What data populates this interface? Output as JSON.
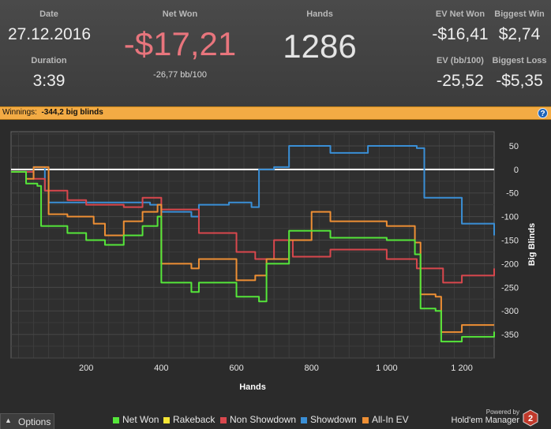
{
  "header": {
    "date_label": "Date",
    "date_value": "27.12.2016",
    "duration_label": "Duration",
    "duration_value": "3:39",
    "net_won_label": "Net Won",
    "net_won_value": "-$17,21",
    "net_won_sub": "-26,77 bb/100",
    "hands_label": "Hands",
    "hands_value": "1286",
    "ev_net_won_label": "EV Net Won",
    "ev_net_won_value": "-$16,41",
    "biggest_win_label": "Biggest Win",
    "biggest_win_value": "$2,74",
    "ev_bb100_label": "EV (bb/100)",
    "ev_bb100_value": "-25,52",
    "biggest_loss_label": "Biggest Loss",
    "biggest_loss_value": "-$5,35"
  },
  "winnings_bar": {
    "label": "Winnings:",
    "value": "-344,2 big blinds",
    "help": "?"
  },
  "footer": {
    "options_label": "Options",
    "legend": [
      "Net Won",
      "Rakeback",
      "Non Showdown",
      "Showdown",
      "All-In EV"
    ],
    "powered_by": "Powered by",
    "brand": "Hold'em Manager",
    "brand_num": "2"
  },
  "colors": {
    "net_won": "#55e63a",
    "rakeback": "#f5e635",
    "non_showdown": "#d9474d",
    "showdown": "#3a8fd6",
    "all_in_ev": "#ee8f34",
    "net_won_value": "#e8757d",
    "orange_bar": "#f3ab44"
  },
  "chart_data": {
    "type": "line",
    "xlabel": "Hands",
    "ylabel": "Big Blinds",
    "xlim": [
      0,
      1286
    ],
    "ylim": [
      -400,
      80
    ],
    "x_ticks": [
      200,
      400,
      600,
      800,
      1000,
      1200
    ],
    "x_tick_labels": [
      "200",
      "400",
      "600",
      "800",
      "1 000",
      "1 200"
    ],
    "y_ticks": [
      50,
      0,
      -50,
      -100,
      -150,
      -200,
      -250,
      -300,
      -350
    ],
    "grid": true,
    "legend_position": "bottom",
    "series": [
      {
        "name": "Showdown",
        "color": "#3a8fd6",
        "x": [
          0,
          60,
          90,
          100,
          200,
          370,
          400,
          480,
          500,
          580,
          640,
          660,
          700,
          740,
          850,
          950,
          1000,
          1080,
          1100,
          1200,
          1286
        ],
        "y": [
          -5,
          5,
          -45,
          -70,
          -70,
          -75,
          -90,
          -100,
          -75,
          -70,
          -80,
          0,
          5,
          50,
          35,
          50,
          50,
          45,
          -60,
          -115,
          -140
        ]
      },
      {
        "name": "Non Showdown",
        "color": "#d9474d",
        "x": [
          0,
          60,
          90,
          150,
          200,
          300,
          350,
          400,
          500,
          600,
          650,
          700,
          750,
          850,
          1000,
          1080,
          1150,
          1200,
          1286
        ],
        "y": [
          -5,
          -20,
          -45,
          -65,
          -75,
          -80,
          -60,
          -85,
          -135,
          -175,
          -190,
          -150,
          -185,
          -170,
          -190,
          -210,
          -240,
          -225,
          -210
        ]
      },
      {
        "name": "All-In EV",
        "color": "#ee8f34",
        "x": [
          0,
          40,
          60,
          100,
          150,
          220,
          250,
          300,
          350,
          390,
          400,
          480,
          500,
          600,
          650,
          680,
          740,
          800,
          850,
          1000,
          1075,
          1090,
          1130,
          1145,
          1200,
          1286
        ],
        "y": [
          -5,
          -20,
          5,
          -95,
          -100,
          -115,
          -140,
          -110,
          -90,
          -75,
          -200,
          -210,
          -190,
          -235,
          -225,
          -190,
          -150,
          -90,
          -110,
          -120,
          -155,
          -265,
          -270,
          -345,
          -330,
          -330
        ]
      },
      {
        "name": "Net Won",
        "color": "#55e63a",
        "x": [
          0,
          40,
          70,
          80,
          150,
          200,
          250,
          300,
          350,
          390,
          400,
          480,
          500,
          600,
          660,
          680,
          740,
          800,
          850,
          1000,
          1075,
          1090,
          1130,
          1145,
          1200,
          1286
        ],
        "y": [
          -5,
          -30,
          -35,
          -120,
          -135,
          -150,
          -160,
          -140,
          -120,
          -100,
          -240,
          -260,
          -240,
          -270,
          -280,
          -200,
          -130,
          -130,
          -145,
          -150,
          -180,
          -295,
          -300,
          -365,
          -355,
          -344
        ]
      }
    ]
  }
}
